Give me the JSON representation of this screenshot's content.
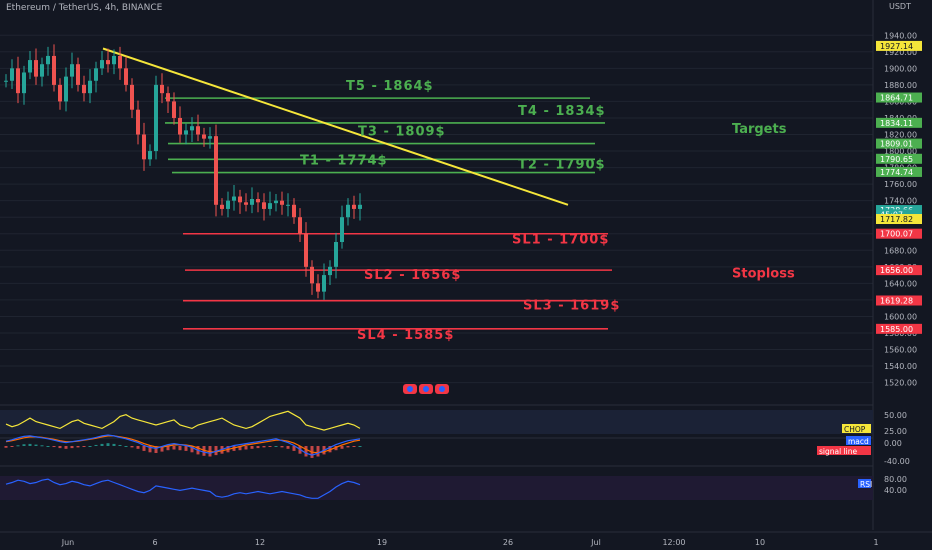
{
  "header": {
    "symbol": "Ethereum / TetherUS, 4h, BINANCE",
    "unit": "USDT"
  },
  "colors": {
    "background": "#131722",
    "grid": "#1f2430",
    "up": "#26a69a",
    "down": "#ef5350",
    "trendline": "#f5e63a",
    "target": "#4caf50",
    "stoploss": "#f23645",
    "axis_text": "#b2b5be",
    "chop": "#f5e63a",
    "macd": "#2962ff",
    "signal": "#ff6d00",
    "rsi": "#2962ff"
  },
  "chart_data": {
    "type": "candlestick",
    "title": "Ethereum / TetherUS, 4h, BINANCE",
    "ylim": [
      1505,
      1950
    ],
    "y_ticks": [
      1940,
      1920,
      1900,
      1880,
      1860,
      1840,
      1820,
      1800,
      1780,
      1760,
      1740,
      1720,
      1700,
      1680,
      1660,
      1640,
      1620,
      1600,
      1580,
      1560,
      1540,
      1520
    ],
    "x_ticks": [
      "Jun",
      "6",
      "12",
      "19",
      "26",
      "Jul",
      "12:00",
      "10",
      "1"
    ],
    "series": [
      {
        "type": "candles",
        "values": [
          1885,
          1900,
          1870,
          1895,
          1910,
          1890,
          1905,
          1915,
          1880,
          1860,
          1890,
          1905,
          1880,
          1870,
          1885,
          1900,
          1910,
          1905,
          1915,
          1900,
          1880,
          1850,
          1820,
          1790,
          1800,
          1880,
          1870,
          1860,
          1840,
          1820,
          1825,
          1830,
          1820,
          1815,
          1818,
          1735,
          1730,
          1740,
          1745,
          1738,
          1735,
          1742,
          1738,
          1730,
          1737,
          1740,
          1735,
          1735,
          1720,
          1700,
          1660,
          1640,
          1630,
          1650,
          1660,
          1690,
          1720,
          1735,
          1730,
          1735
        ]
      },
      {
        "type": "trendline",
        "name": "",
        "from": {
          "x": "Jun 3",
          "y": 1924
        },
        "to": {
          "x": "Jun 28",
          "y": 1735
        }
      }
    ],
    "levels": [
      {
        "label": "T5 - 1864$",
        "value": 1864,
        "kind": "target"
      },
      {
        "label": "T4 - 1834$",
        "value": 1834,
        "kind": "target"
      },
      {
        "label": "T3 - 1809$",
        "value": 1809,
        "kind": "target"
      },
      {
        "label": "T2 - 1790$",
        "value": 1790,
        "kind": "target"
      },
      {
        "label": "T1 - 1774$",
        "value": 1774,
        "kind": "target"
      },
      {
        "label": "SL1 - 1700$",
        "value": 1700,
        "kind": "stoploss"
      },
      {
        "label": "SL2 - 1656$",
        "value": 1656,
        "kind": "stoploss"
      },
      {
        "label": "SL3 - 1619$",
        "value": 1619,
        "kind": "stoploss"
      },
      {
        "label": "SL4 - 1585$",
        "value": 1585,
        "kind": "stoploss"
      }
    ],
    "group_labels": {
      "targets": "Targets",
      "stoploss": "Stoploss"
    },
    "price_tags": [
      {
        "text": "1927.14",
        "value": 1927.14,
        "style": "yellow"
      },
      {
        "text": "1864.71",
        "value": 1864.71,
        "style": "green"
      },
      {
        "text": "1834.11",
        "value": 1834.11,
        "style": "green"
      },
      {
        "text": "1809.01",
        "value": 1809.01,
        "style": "green"
      },
      {
        "text": "1790.65",
        "value": 1790.65,
        "style": "green"
      },
      {
        "text": "1774.74",
        "value": 1774.74,
        "style": "green"
      },
      {
        "text": "1728.66",
        "value": 1728.66,
        "style": "teal"
      },
      {
        "text": "45:07",
        "value": 1723.5,
        "style": "teal"
      },
      {
        "text": "1717.82",
        "value": 1717.82,
        "style": "yellow"
      },
      {
        "text": "1700.07",
        "value": 1700.07,
        "style": "red"
      },
      {
        "text": "1656.00",
        "value": 1656.0,
        "style": "red"
      },
      {
        "text": "1619.28",
        "value": 1619.28,
        "style": "red"
      },
      {
        "text": "1585.00",
        "value": 1585.0,
        "style": "red"
      }
    ],
    "indicators": {
      "chop": {
        "label": "CHOP",
        "ticks": [
          "50.00",
          "25.00"
        ],
        "values": [
          45,
          42,
          44,
          48,
          52,
          48,
          46,
          44,
          42,
          40,
          44,
          48,
          50,
          46,
          44,
          42,
          40,
          44,
          48,
          54,
          56,
          52,
          50,
          48,
          46,
          44,
          46,
          48,
          50,
          44,
          42,
          40,
          44,
          46,
          48,
          50,
          52,
          48,
          44,
          42,
          40,
          42,
          46,
          50,
          54,
          56,
          58,
          60,
          56,
          52,
          44,
          42,
          40,
          38,
          40,
          42,
          44,
          46,
          44,
          40
        ]
      },
      "macd": {
        "label": "macd",
        "signal_label": "signal line",
        "ticks": [
          "0.00",
          "-40.00"
        ],
        "values": [
          -5,
          -2,
          2,
          5,
          6,
          4,
          2,
          0,
          -3,
          -6,
          -8,
          -6,
          -4,
          -2,
          0,
          3,
          6,
          8,
          6,
          3,
          0,
          -4,
          -8,
          -14,
          -18,
          -20,
          -16,
          -12,
          -10,
          -12,
          -14,
          -18,
          -24,
          -28,
          -30,
          -26,
          -22,
          -18,
          -14,
          -12,
          -10,
          -8,
          -6,
          -4,
          -2,
          0,
          -4,
          -8,
          -14,
          -22,
          -30,
          -34,
          -30,
          -24,
          -18,
          -12,
          -8,
          -4,
          -2,
          0
        ],
        "signal_values": [
          -6,
          -4,
          -1,
          2,
          4,
          4,
          3,
          1,
          -1,
          -4,
          -6,
          -6,
          -5,
          -3,
          -1,
          1,
          4,
          6,
          6,
          4,
          2,
          -1,
          -5,
          -10,
          -14,
          -17,
          -17,
          -15,
          -13,
          -12,
          -13,
          -15,
          -19,
          -24,
          -27,
          -27,
          -25,
          -22,
          -19,
          -16,
          -13,
          -11,
          -9,
          -7,
          -5,
          -3,
          -3,
          -5,
          -9,
          -15,
          -22,
          -28,
          -29,
          -27,
          -23,
          -18,
          -13,
          -9,
          -5,
          -3
        ]
      },
      "rsi": {
        "label": "RSI",
        "ticks": [
          "80.00",
          "40.00"
        ],
        "values": [
          55,
          58,
          62,
          60,
          56,
          58,
          62,
          64,
          58,
          54,
          56,
          60,
          58,
          54,
          52,
          56,
          60,
          62,
          58,
          54,
          50,
          46,
          42,
          40,
          44,
          52,
          50,
          48,
          46,
          44,
          46,
          48,
          46,
          44,
          42,
          34,
          32,
          34,
          38,
          40,
          38,
          40,
          42,
          40,
          38,
          40,
          42,
          40,
          38,
          36,
          32,
          30,
          30,
          36,
          42,
          50,
          56,
          60,
          58,
          54
        ]
      }
    }
  }
}
